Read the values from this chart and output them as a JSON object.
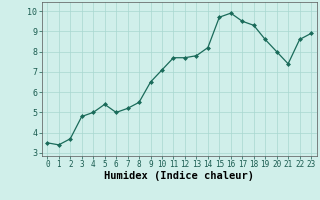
{
  "x": [
    0,
    1,
    2,
    3,
    4,
    5,
    6,
    7,
    8,
    9,
    10,
    11,
    12,
    13,
    14,
    15,
    16,
    17,
    18,
    19,
    20,
    21,
    22,
    23
  ],
  "y": [
    3.5,
    3.4,
    3.7,
    4.8,
    5.0,
    5.4,
    5.0,
    5.2,
    5.5,
    6.5,
    7.1,
    7.7,
    7.7,
    7.8,
    8.2,
    9.7,
    9.9,
    9.5,
    9.3,
    8.6,
    8.0,
    7.4,
    8.6,
    8.9
  ],
  "xlabel": "Humidex (Indice chaleur)",
  "xlim": [
    -0.5,
    23.5
  ],
  "ylim": [
    2.85,
    10.45
  ],
  "yticks": [
    3,
    4,
    5,
    6,
    7,
    8,
    9,
    10
  ],
  "xticks": [
    0,
    1,
    2,
    3,
    4,
    5,
    6,
    7,
    8,
    9,
    10,
    11,
    12,
    13,
    14,
    15,
    16,
    17,
    18,
    19,
    20,
    21,
    22,
    23
  ],
  "line_color": "#1a6b5a",
  "marker_color": "#1a6b5a",
  "bg_color": "#d0efea",
  "grid_color": "#a8d8d0",
  "xlabel_fontsize": 7.5,
  "tick_fontsize": 5.5
}
